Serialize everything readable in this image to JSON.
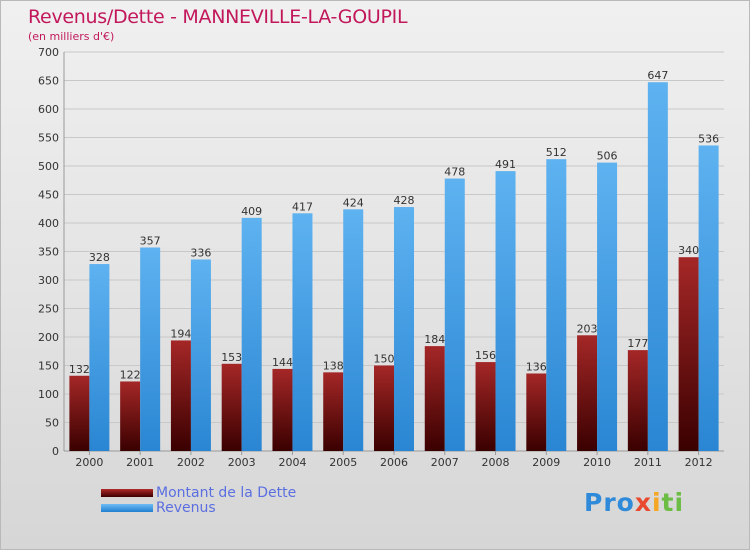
{
  "chart_data": {
    "type": "bar",
    "title": "Revenus/Dette - MANNEVILLE-LA-GOUPIL",
    "subtitle": "(en milliers d'€)",
    "categories": [
      "2000",
      "2001",
      "2002",
      "2003",
      "2004",
      "2005",
      "2006",
      "2007",
      "2008",
      "2009",
      "2010",
      "2011",
      "2012"
    ],
    "series": [
      {
        "name": "Montant de la Dette",
        "color": "#7a1010",
        "values": [
          132,
          122,
          194,
          153,
          144,
          138,
          150,
          184,
          156,
          136,
          203,
          177,
          340
        ]
      },
      {
        "name": "Revenus",
        "color": "#4aa3ea",
        "values": [
          328,
          357,
          336,
          409,
          417,
          424,
          428,
          478,
          491,
          512,
          506,
          647,
          536
        ]
      }
    ],
    "ylim": [
      0,
      700
    ],
    "yticks": [
      0,
      50,
      100,
      150,
      200,
      250,
      300,
      350,
      400,
      450,
      500,
      550,
      600,
      650,
      700
    ],
    "grid": true,
    "legend_position": "bottom-left"
  },
  "logo": {
    "part1": "Pro",
    "part2": "x",
    "part3": "i",
    "part4": "ti"
  }
}
